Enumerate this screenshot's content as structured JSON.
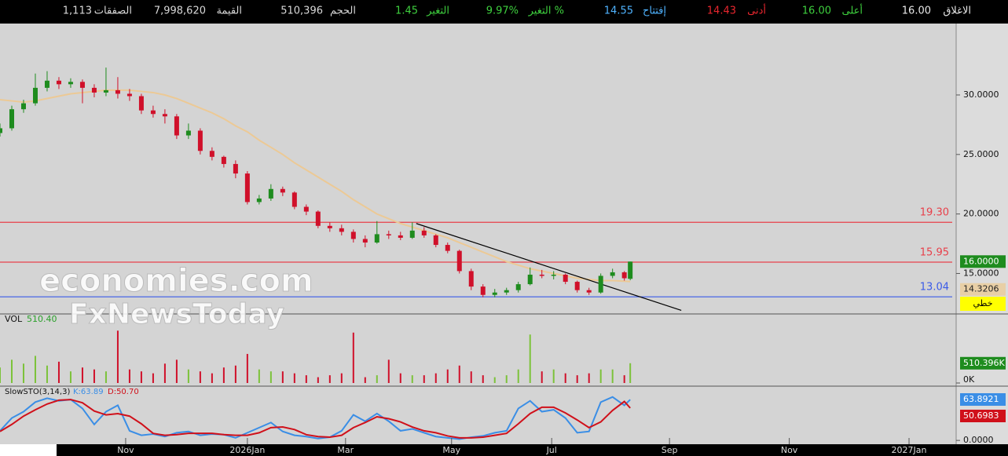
{
  "header": {
    "items": [
      {
        "label": "الاغلاق",
        "value": "16.00",
        "color": "#e8e8e8"
      },
      {
        "label": "أعلى",
        "value": "16.00",
        "color": "#3ecf3e"
      },
      {
        "label": "أدنى",
        "value": "14.43",
        "color": "#e8262e"
      },
      {
        "label": "إفتتاح",
        "value": "14.55",
        "color": "#4fb3ff"
      },
      {
        "label": "التغير %",
        "value": "9.97%",
        "color": "#3ecf3e"
      },
      {
        "label": "التغير",
        "value": "1.45",
        "color": "#3ecf3e"
      },
      {
        "label": "الحجم",
        "value": "510,396",
        "color": "#d8d8d8"
      },
      {
        "label": "القيمة",
        "value": "7,998,620",
        "color": "#d8d8d8"
      },
      {
        "label": "الصفقات",
        "value": "1,113",
        "color": "#d8d8d8"
      }
    ]
  },
  "watermarks": [
    "economies.com",
    "FxNewsToday"
  ],
  "chart_data": [
    {
      "type": "candlestick",
      "x": [
        0,
        6,
        12,
        18,
        24,
        30,
        36,
        42,
        48,
        54,
        60,
        66,
        72,
        78,
        84,
        90,
        96,
        102,
        108,
        114,
        120,
        126,
        132,
        138,
        144,
        150,
        156,
        162,
        168,
        174,
        180,
        186,
        192,
        198,
        204,
        210,
        216,
        222,
        228,
        234,
        240,
        246,
        252,
        258,
        264,
        270,
        276,
        282,
        288,
        294,
        300,
        306,
        312,
        318,
        321
      ],
      "candles": [
        [
          26.8,
          27.6,
          26.5,
          27.2
        ],
        [
          27.2,
          29.1,
          27.0,
          28.8
        ],
        [
          28.8,
          29.6,
          28.5,
          29.3
        ],
        [
          29.3,
          31.8,
          29.1,
          30.6
        ],
        [
          30.6,
          32.0,
          30.3,
          31.2
        ],
        [
          31.2,
          31.5,
          30.5,
          30.9
        ],
        [
          30.9,
          31.4,
          30.6,
          31.1
        ],
        [
          31.1,
          31.3,
          29.3,
          30.6
        ],
        [
          30.6,
          30.9,
          29.8,
          30.2
        ],
        [
          30.2,
          32.3,
          29.9,
          30.4
        ],
        [
          30.4,
          31.5,
          29.7,
          30.1
        ],
        [
          30.1,
          30.5,
          29.5,
          29.9
        ],
        [
          29.9,
          30.1,
          28.4,
          28.7
        ],
        [
          28.7,
          29.1,
          28.1,
          28.4
        ],
        [
          28.4,
          28.8,
          27.6,
          28.2
        ],
        [
          28.2,
          28.4,
          26.3,
          26.6
        ],
        [
          26.6,
          27.6,
          26.3,
          27.0
        ],
        [
          27.0,
          27.2,
          25.0,
          25.3
        ],
        [
          25.3,
          25.6,
          24.5,
          24.8
        ],
        [
          24.8,
          24.9,
          23.9,
          24.2
        ],
        [
          24.2,
          24.5,
          23.0,
          23.4
        ],
        [
          23.4,
          23.6,
          20.8,
          21.0
        ],
        [
          21.0,
          21.6,
          20.8,
          21.3
        ],
        [
          21.3,
          22.5,
          21.1,
          22.1
        ],
        [
          22.1,
          22.3,
          21.5,
          21.8
        ],
        [
          21.8,
          21.9,
          20.4,
          20.6
        ],
        [
          20.6,
          20.8,
          19.9,
          20.2
        ],
        [
          20.2,
          20.3,
          18.8,
          19.0
        ],
        [
          19.0,
          19.3,
          18.5,
          18.8
        ],
        [
          18.8,
          19.1,
          18.2,
          18.5
        ],
        [
          18.5,
          18.7,
          17.6,
          17.9
        ],
        [
          17.9,
          18.2,
          17.2,
          17.6
        ],
        [
          17.6,
          19.4,
          17.5,
          18.3
        ],
        [
          18.3,
          18.6,
          17.9,
          18.2
        ],
        [
          18.2,
          18.5,
          17.8,
          18.0
        ],
        [
          18.0,
          19.3,
          17.9,
          18.6
        ],
        [
          18.6,
          18.9,
          18.0,
          18.2
        ],
        [
          18.2,
          18.3,
          17.2,
          17.4
        ],
        [
          17.4,
          17.6,
          16.7,
          16.9
        ],
        [
          16.9,
          17.0,
          15.0,
          15.2
        ],
        [
          15.2,
          15.4,
          13.6,
          13.9
        ],
        [
          13.9,
          14.1,
          13.0,
          13.2
        ],
        [
          13.2,
          13.7,
          13.0,
          13.4
        ],
        [
          13.4,
          13.8,
          13.2,
          13.6
        ],
        [
          13.6,
          14.3,
          13.4,
          14.1
        ],
        [
          14.1,
          15.5,
          14.0,
          14.9
        ],
        [
          14.9,
          15.3,
          14.6,
          14.8
        ],
        [
          14.8,
          15.2,
          14.5,
          14.9
        ],
        [
          14.9,
          15.0,
          14.1,
          14.3
        ],
        [
          14.3,
          14.4,
          13.4,
          13.6
        ],
        [
          13.6,
          13.8,
          13.2,
          13.4
        ],
        [
          13.4,
          15.0,
          13.3,
          14.8
        ],
        [
          14.8,
          15.4,
          14.6,
          15.1
        ],
        [
          15.1,
          15.2,
          14.4,
          14.6
        ],
        [
          14.55,
          16.0,
          14.43,
          16.0
        ]
      ],
      "up_color": "#1e8c1e",
      "down_color": "#d0102a",
      "ma": {
        "color": "#ecc995",
        "values": [
          29.6,
          29.5,
          29.4,
          29.5,
          29.7,
          29.9,
          30.1,
          30.2,
          30.3,
          30.4,
          30.4,
          30.4,
          30.3,
          30.2,
          30.0,
          29.7,
          29.3,
          28.9,
          28.5,
          28.0,
          27.4,
          26.9,
          26.2,
          25.6,
          25.0,
          24.3,
          23.7,
          23.1,
          22.5,
          21.9,
          21.2,
          20.6,
          20.0,
          19.6,
          19.2,
          18.9,
          18.6,
          18.3,
          18.0,
          17.6,
          17.2,
          16.8,
          16.4,
          16.0,
          15.7,
          15.4,
          15.2,
          15.0,
          14.8,
          14.6,
          14.5,
          14.4,
          14.4,
          14.35,
          14.3206
        ]
      },
      "last_price_label": "16.0000",
      "line_type_label": "خطي",
      "levels": [
        {
          "value": 19.3,
          "label": "19.30",
          "color": "#e8404a"
        },
        {
          "value": 15.95,
          "label": "15.95",
          "color": "#e8404a"
        },
        {
          "value": 13.04,
          "label": "13.04",
          "color": "#3a5ae8"
        }
      ],
      "trendline": {
        "x": [
          212,
          347
        ],
        "y": [
          19.2,
          11.9
        ],
        "color": "#000000"
      },
      "ylim": [
        11.6,
        36
      ],
      "yticks": [
        {
          "value": 30,
          "label": "30.0000"
        },
        {
          "value": 25,
          "label": "25.0000"
        },
        {
          "value": 20,
          "label": "20.0000"
        },
        {
          "value": 15,
          "label": "15.0000"
        }
      ]
    },
    {
      "type": "bar",
      "title": "VOL",
      "legend_value": "510.40",
      "color": "#7cc23a",
      "down_color": "#d0102a",
      "values": [
        400,
        600,
        500,
        700,
        450,
        550,
        300,
        400,
        350,
        300,
        1350,
        350,
        300,
        250,
        500,
        600,
        350,
        300,
        250,
        400,
        450,
        750,
        350,
        300,
        300,
        250,
        200,
        150,
        200,
        250,
        1300,
        150,
        200,
        600,
        250,
        200,
        200,
        250,
        350,
        450,
        300,
        200,
        150,
        200,
        350,
        1250,
        300,
        350,
        250,
        200,
        250,
        350,
        350,
        200,
        510.396
      ],
      "last_value_label": "510.396K",
      "ylim": [
        0,
        1700
      ],
      "yticks": [
        {
          "value": 0,
          "label": "0K"
        }
      ]
    },
    {
      "type": "line",
      "title": "SlowSTO(3,14,3)",
      "series": [
        {
          "name": "K:63.89",
          "color": "#3a8ee6",
          "values": [
            15,
            35,
            45,
            60,
            66,
            62,
            64,
            50,
            25,
            45,
            55,
            15,
            8,
            10,
            6,
            12,
            14,
            8,
            10,
            9,
            4,
            12,
            20,
            28,
            14,
            8,
            6,
            3,
            5,
            15,
            40,
            30,
            42,
            30,
            15,
            18,
            12,
            6,
            4,
            2,
            5,
            7,
            12,
            15,
            50,
            62,
            45,
            48,
            35,
            12,
            14,
            60,
            68,
            55,
            63.8921
          ]
        },
        {
          "name": "D:50.70",
          "color": "#d0101a",
          "values": [
            14,
            25,
            38,
            48,
            57,
            63,
            64,
            59,
            46,
            40,
            42,
            38,
            26,
            11,
            8,
            9,
            11,
            11,
            11,
            9,
            8,
            8,
            12,
            20,
            21,
            17,
            9,
            6,
            5,
            8,
            20,
            28,
            37,
            34,
            29,
            21,
            15,
            12,
            7,
            4,
            4,
            5,
            8,
            11,
            26,
            42,
            52,
            52,
            43,
            32,
            20,
            29,
            47,
            61,
            50.6983
          ]
        }
      ],
      "ylim": [
        -6,
        85
      ],
      "yticks": [
        {
          "value": 0,
          "label": "0.0000"
        }
      ],
      "xlim": [
        0,
        487
      ],
      "xticks": [
        {
          "value": 64,
          "label": "Nov"
        },
        {
          "value": 126,
          "label": "2026Jan"
        },
        {
          "value": 176,
          "label": "Mar"
        },
        {
          "value": 230,
          "label": "May"
        },
        {
          "value": 281,
          "label": "Jul"
        },
        {
          "value": 341,
          "label": "Sep"
        },
        {
          "value": 402,
          "label": "Nov"
        },
        {
          "value": 463,
          "label": "2027Jan"
        }
      ]
    }
  ]
}
